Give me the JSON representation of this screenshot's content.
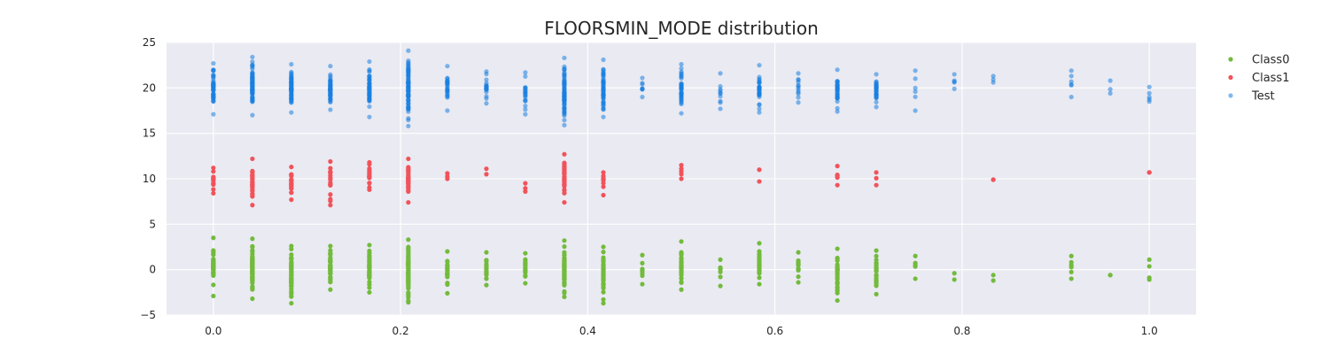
{
  "chart_data": {
    "type": "scatter",
    "title": "FLOORSMIN_MODE distribution",
    "xlabel": "",
    "ylabel": "",
    "xlim": [
      -0.05,
      1.05
    ],
    "ylim": [
      -5,
      25
    ],
    "xticks": [
      0.0,
      0.2,
      0.4,
      0.6,
      0.8,
      1.0
    ],
    "xtick_labels": [
      "0.0",
      "0.2",
      "0.4",
      "0.6",
      "0.8",
      "1.0"
    ],
    "yticks": [
      -5,
      0,
      5,
      10,
      15,
      20,
      25
    ],
    "ytick_labels": [
      "−5",
      "0",
      "5",
      "10",
      "15",
      "20",
      "25"
    ],
    "grid": true,
    "legend_position": "right",
    "background": "#eaeaf2",
    "series": [
      {
        "name": "Class0",
        "color": "#72bb3c",
        "opacity": 1.0,
        "columns": [
          {
            "x": 0.0,
            "min": -2.9,
            "max": 3.5,
            "n": 40
          },
          {
            "x": 0.0417,
            "min": -3.2,
            "max": 3.4,
            "n": 70
          },
          {
            "x": 0.0833,
            "min": -3.7,
            "max": 2.6,
            "n": 55
          },
          {
            "x": 0.125,
            "min": -2.2,
            "max": 2.6,
            "n": 50
          },
          {
            "x": 0.1667,
            "min": -2.5,
            "max": 2.7,
            "n": 50
          },
          {
            "x": 0.2083,
            "min": -3.6,
            "max": 3.3,
            "n": 70
          },
          {
            "x": 0.25,
            "min": -2.6,
            "max": 2.0,
            "n": 25
          },
          {
            "x": 0.2917,
            "min": -1.7,
            "max": 1.9,
            "n": 18
          },
          {
            "x": 0.3333,
            "min": -1.5,
            "max": 1.8,
            "n": 18
          },
          {
            "x": 0.375,
            "min": -3.0,
            "max": 3.2,
            "n": 70
          },
          {
            "x": 0.4167,
            "min": -3.7,
            "max": 2.5,
            "n": 50
          },
          {
            "x": 0.4583,
            "min": -1.6,
            "max": 1.6,
            "n": 8
          },
          {
            "x": 0.5,
            "min": -2.2,
            "max": 3.1,
            "n": 35
          },
          {
            "x": 0.5417,
            "min": -1.8,
            "max": 1.1,
            "n": 8
          },
          {
            "x": 0.5833,
            "min": -1.6,
            "max": 2.9,
            "n": 30
          },
          {
            "x": 0.625,
            "min": -1.4,
            "max": 1.9,
            "n": 14
          },
          {
            "x": 0.6667,
            "min": -3.4,
            "max": 2.3,
            "n": 30
          },
          {
            "x": 0.7083,
            "min": -2.7,
            "max": 2.1,
            "n": 30
          },
          {
            "x": 0.75,
            "min": -1.0,
            "max": 1.5,
            "n": 5
          },
          {
            "x": 0.7917,
            "min": -1.1,
            "max": -0.4,
            "n": 2
          },
          {
            "x": 0.8333,
            "min": -1.2,
            "max": -0.6,
            "n": 2
          },
          {
            "x": 0.9167,
            "min": -1.0,
            "max": 1.5,
            "n": 6
          },
          {
            "x": 0.9583,
            "min": -0.6,
            "max": -0.6,
            "n": 1
          },
          {
            "x": 1.0,
            "min": -1.1,
            "max": 1.1,
            "n": 4
          }
        ]
      },
      {
        "name": "Class1",
        "color": "#f1535a",
        "opacity": 1.0,
        "columns": [
          {
            "x": 0.0,
            "min": 8.4,
            "max": 11.2,
            "n": 12
          },
          {
            "x": 0.0417,
            "min": 7.1,
            "max": 12.2,
            "n": 30
          },
          {
            "x": 0.0833,
            "min": 7.7,
            "max": 11.3,
            "n": 20
          },
          {
            "x": 0.125,
            "min": 7.1,
            "max": 11.9,
            "n": 18
          },
          {
            "x": 0.1667,
            "min": 8.8,
            "max": 11.8,
            "n": 20
          },
          {
            "x": 0.2083,
            "min": 7.4,
            "max": 12.2,
            "n": 40
          },
          {
            "x": 0.25,
            "min": 10.0,
            "max": 10.6,
            "n": 3
          },
          {
            "x": 0.2917,
            "min": 10.5,
            "max": 11.1,
            "n": 2
          },
          {
            "x": 0.3333,
            "min": 8.6,
            "max": 9.5,
            "n": 3
          },
          {
            "x": 0.375,
            "min": 7.4,
            "max": 12.7,
            "n": 40
          },
          {
            "x": 0.4167,
            "min": 8.2,
            "max": 10.7,
            "n": 10
          },
          {
            "x": 0.5,
            "min": 10.0,
            "max": 11.5,
            "n": 5
          },
          {
            "x": 0.5833,
            "min": 9.7,
            "max": 11.0,
            "n": 2
          },
          {
            "x": 0.6667,
            "min": 9.3,
            "max": 11.4,
            "n": 5
          },
          {
            "x": 0.7083,
            "min": 9.3,
            "max": 10.7,
            "n": 3
          },
          {
            "x": 0.8333,
            "min": 9.9,
            "max": 9.9,
            "n": 1
          },
          {
            "x": 1.0,
            "min": 10.7,
            "max": 10.7,
            "n": 1
          }
        ]
      },
      {
        "name": "Test",
        "color": "#1a80e0",
        "opacity": 0.55,
        "columns": [
          {
            "x": 0.0,
            "min": 17.1,
            "max": 22.7,
            "n": 50
          },
          {
            "x": 0.0417,
            "min": 17.0,
            "max": 23.4,
            "n": 80
          },
          {
            "x": 0.0833,
            "min": 17.3,
            "max": 22.6,
            "n": 60
          },
          {
            "x": 0.125,
            "min": 17.6,
            "max": 22.4,
            "n": 55
          },
          {
            "x": 0.1667,
            "min": 16.8,
            "max": 22.9,
            "n": 55
          },
          {
            "x": 0.2083,
            "min": 15.8,
            "max": 24.1,
            "n": 80
          },
          {
            "x": 0.25,
            "min": 17.5,
            "max": 22.4,
            "n": 25
          },
          {
            "x": 0.2917,
            "min": 18.3,
            "max": 21.8,
            "n": 20
          },
          {
            "x": 0.3333,
            "min": 17.1,
            "max": 21.7,
            "n": 20
          },
          {
            "x": 0.375,
            "min": 15.9,
            "max": 23.3,
            "n": 80
          },
          {
            "x": 0.4167,
            "min": 16.8,
            "max": 23.1,
            "n": 55
          },
          {
            "x": 0.4583,
            "min": 19.0,
            "max": 21.1,
            "n": 8
          },
          {
            "x": 0.5,
            "min": 17.2,
            "max": 22.6,
            "n": 40
          },
          {
            "x": 0.5417,
            "min": 17.7,
            "max": 21.6,
            "n": 10
          },
          {
            "x": 0.5833,
            "min": 17.3,
            "max": 22.5,
            "n": 35
          },
          {
            "x": 0.625,
            "min": 18.4,
            "max": 21.6,
            "n": 12
          },
          {
            "x": 0.6667,
            "min": 17.4,
            "max": 22.0,
            "n": 35
          },
          {
            "x": 0.7083,
            "min": 17.9,
            "max": 21.5,
            "n": 35
          },
          {
            "x": 0.75,
            "min": 17.5,
            "max": 21.9,
            "n": 6
          },
          {
            "x": 0.7917,
            "min": 19.9,
            "max": 21.5,
            "n": 5
          },
          {
            "x": 0.8333,
            "min": 20.6,
            "max": 21.3,
            "n": 3
          },
          {
            "x": 0.9167,
            "min": 19.0,
            "max": 21.9,
            "n": 6
          },
          {
            "x": 0.9583,
            "min": 19.4,
            "max": 20.8,
            "n": 3
          },
          {
            "x": 1.0,
            "min": 18.5,
            "max": 20.1,
            "n": 5
          }
        ]
      }
    ]
  }
}
